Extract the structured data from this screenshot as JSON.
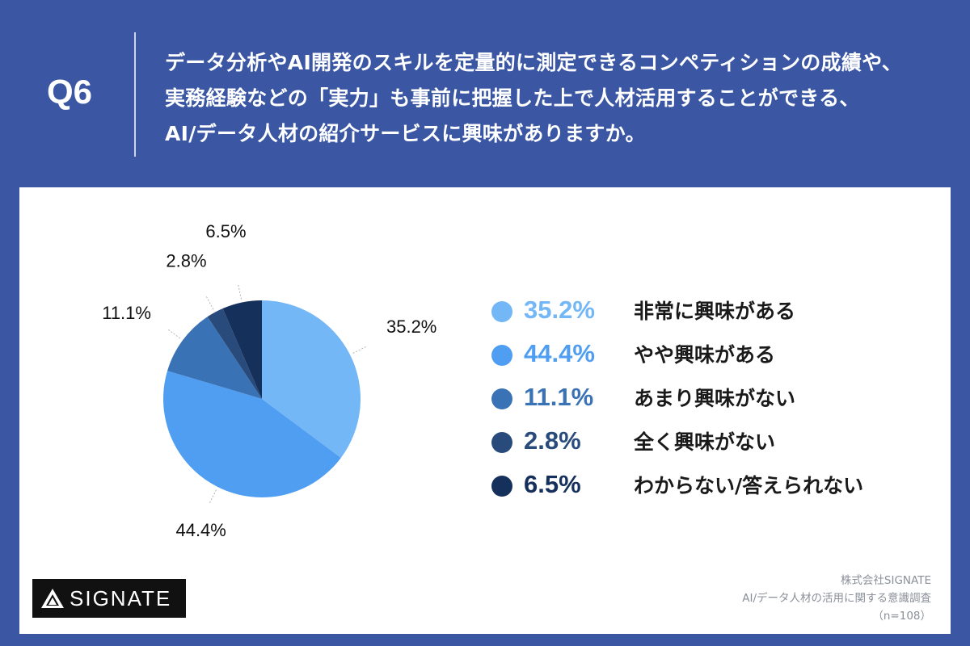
{
  "question": {
    "label": "Q6",
    "lines": [
      "データ分析やAI開発のスキルを定量的に測定できるコンペティションの成績や、",
      "実務経験などの「実力」も事前に把握した上で人材活用することができる、",
      "AI/データ人材の紹介サービスに興味がありますか。"
    ]
  },
  "chart_data": {
    "type": "pie",
    "title": "",
    "categories": [
      "非常に興味がある",
      "やや興味がある",
      "あまり興味がない",
      "全く興味がない",
      "わからない/答えられない"
    ],
    "values": [
      35.2,
      44.4,
      11.1,
      2.8,
      6.5
    ],
    "labels": [
      "35.2%",
      "44.4%",
      "11.1%",
      "2.8%",
      "6.5%"
    ],
    "colors": [
      "#74b7f6",
      "#4f9ef2",
      "#3a72b6",
      "#294b7c",
      "#16305c"
    ],
    "start": "12 o'clock",
    "direction": "clockwise",
    "legend": "right"
  },
  "source": {
    "company": "株式会社SIGNATE",
    "survey": "AI/データ人材の活用に関する意識調査",
    "sample": "（n=108）"
  },
  "logo": {
    "text": "SIGNATE"
  }
}
